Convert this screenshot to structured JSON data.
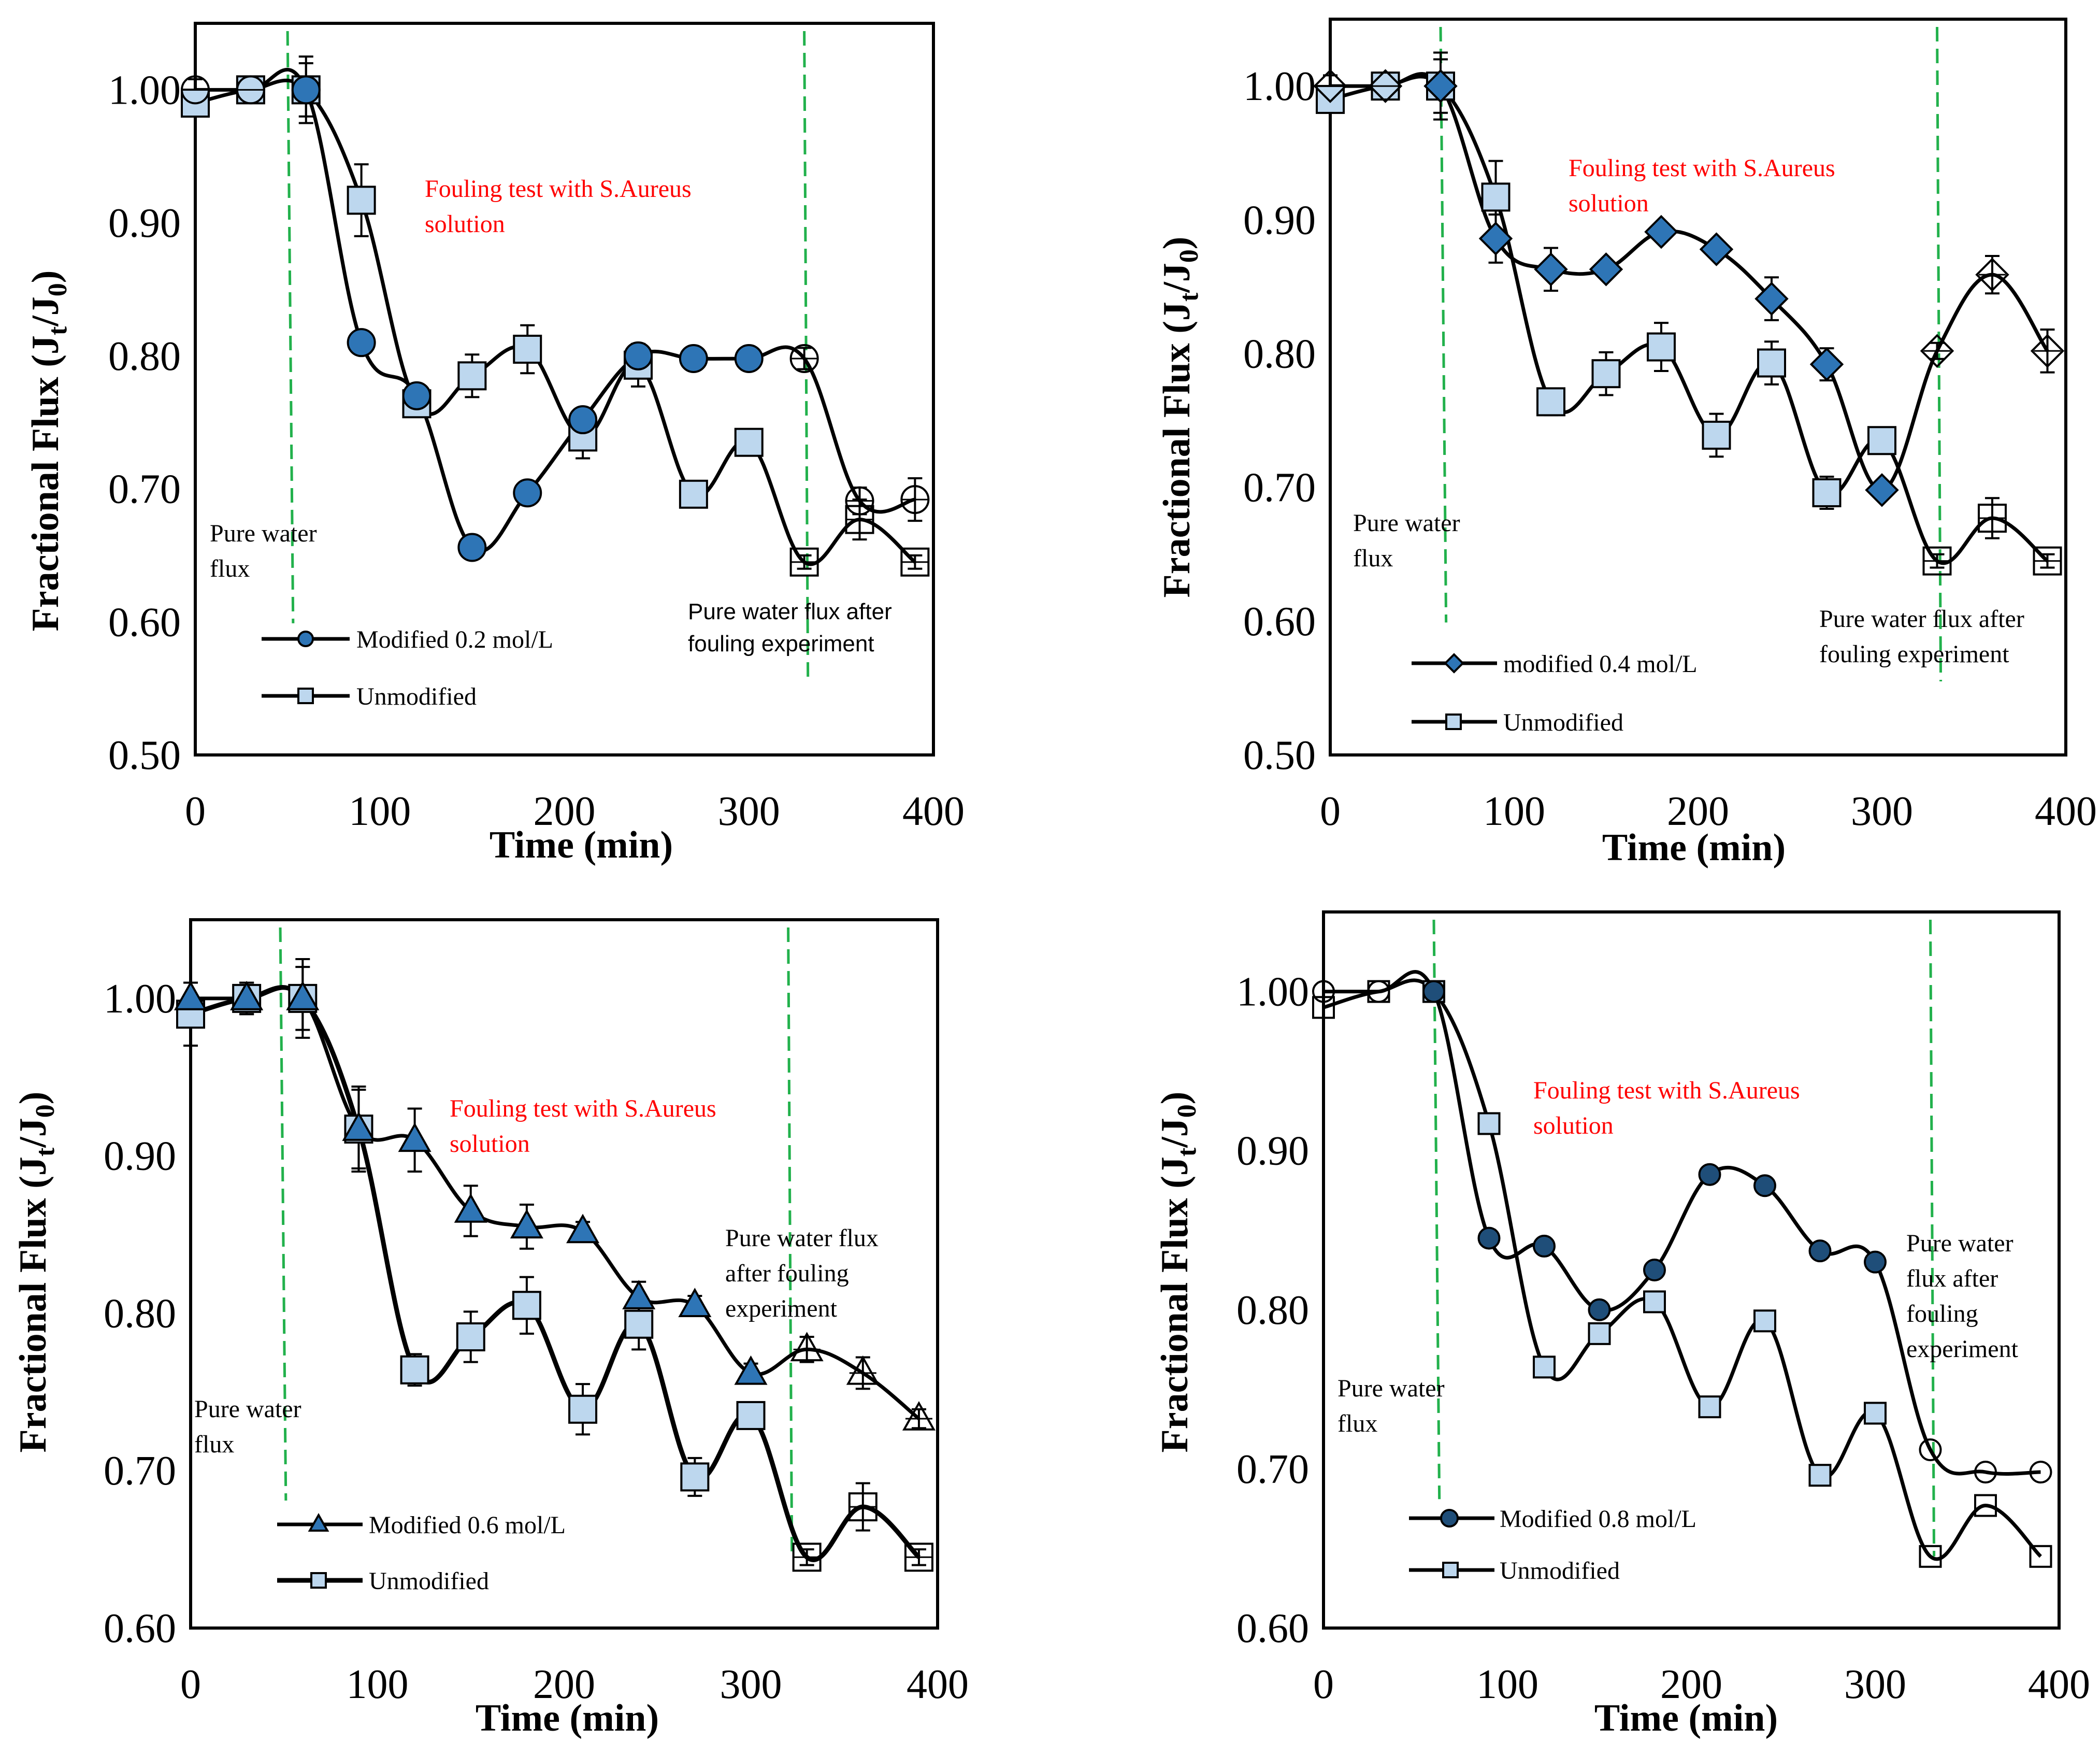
{
  "charts": [
    {
      "ylabel": "Fractional  Flux (J",
      "ylabel_sub": "t",
      "ylabel_mid": "/J",
      "ylabel_sub2": "0",
      "ylabel_end": ")",
      "xlabel": "Time (min)",
      "fouling_label": [
        "Fouling test with S.Aureus",
        "solution"
      ],
      "pure_label": [
        "Pure water",
        "flux"
      ],
      "after_label": [
        "Pure water flux after",
        "fouling experiment"
      ],
      "legend": [
        "Modified 0.2 mol/L",
        "Unmodified"
      ]
    },
    {
      "ylabel": "Fractional Flux (J",
      "ylabel_sub": "t",
      "ylabel_mid": "/J",
      "ylabel_sub2": "0",
      "ylabel_end": ")",
      "xlabel": "Time (min)",
      "fouling_label": [
        "Fouling test with S.Aureus",
        "solution"
      ],
      "pure_label": [
        "Pure water",
        "flux"
      ],
      "after_label": [
        "Pure water flux after",
        "fouling experiment"
      ],
      "legend": [
        "modified 0.4 mol/L",
        "Unmodified"
      ]
    },
    {
      "ylabel": "Fractional Flux (J",
      "ylabel_sub": "t",
      "ylabel_mid": "/J",
      "ylabel_sub2": "0",
      "ylabel_end": ")",
      "xlabel": "Time (min)",
      "fouling_label": [
        "Fouling test with S.Aureus",
        "solution"
      ],
      "pure_label": [
        "Pure water",
        "flux"
      ],
      "after_label": [
        "Pure water flux",
        "after fouling",
        "experiment"
      ],
      "legend": [
        "Modified 0.6 mol/L",
        "Unmodified"
      ]
    },
    {
      "ylabel": "Fractional Flux (J",
      "ylabel_sub": "t",
      "ylabel_mid": "/J",
      "ylabel_sub2": "0",
      "ylabel_end": ")",
      "xlabel": "Time (min)",
      "fouling_label": [
        "Fouling test with S.Aureus",
        "solution"
      ],
      "pure_label": [
        "Pure water",
        "flux"
      ],
      "after_label": [
        "Pure water",
        "flux after",
        "fouling",
        "experiment"
      ],
      "legend": [
        "Modified 0.8 mol/L",
        "Unmodified"
      ]
    }
  ],
  "chart_data": [
    {
      "type": "line",
      "xlabel": "Time (min)",
      "ylabel": "Fractional  Flux (Jt/J0)",
      "xlim": [
        0,
        400
      ],
      "ylim": [
        0.5,
        1.05
      ],
      "xticks": [
        0,
        100,
        200,
        300,
        400
      ],
      "yticks": [
        0.5,
        0.6,
        0.7,
        0.8,
        0.9,
        1.0
      ],
      "ytick_labels": [
        "0.50",
        "0.60",
        "0.70",
        "0.80",
        "0.90",
        "1.00"
      ],
      "vlines": [
        50,
        330
      ],
      "series": [
        {
          "name": "Modified 0.2 mol/L",
          "marker": "circle",
          "color": "#2e75b6",
          "x": [
            0,
            30,
            60,
            90,
            120,
            150,
            180,
            210,
            240,
            270,
            300,
            330,
            360,
            390
          ],
          "y": [
            1.0,
            1.0,
            1.0,
            0.81,
            0.77,
            0.656,
            0.697,
            0.752,
            0.8,
            0.798,
            0.798,
            0.798,
            0.691,
            0.692
          ],
          "err": [
            0.008,
            0.008,
            0.02,
            0.006,
            0.006,
            0.006,
            0.006,
            0.008,
            0.006,
            0.004,
            0.004,
            0.008,
            0.01,
            0.016
          ],
          "hollow_from": 330
        },
        {
          "name": "Unmodified",
          "marker": "square",
          "color": "#bdd7ee",
          "x": [
            0,
            30,
            60,
            90,
            120,
            150,
            180,
            210,
            240,
            270,
            300,
            330,
            360,
            390
          ],
          "y": [
            0.99,
            1.0,
            1.0,
            0.917,
            0.764,
            0.785,
            0.805,
            0.739,
            0.793,
            0.696,
            0.735,
            0.645,
            0.677,
            0.645
          ],
          "err": [
            0.005,
            0.01,
            0.025,
            0.027,
            0.01,
            0.016,
            0.018,
            0.016,
            0.016,
            0.005,
            0.005,
            0.005,
            0.015,
            0.005
          ],
          "hollow_from": 330
        }
      ]
    },
    {
      "type": "line",
      "xlabel": "Time (min)",
      "ylabel": "Fractional Flux (Jt/J0)",
      "xlim": [
        0,
        400
      ],
      "ylim": [
        0.5,
        1.05
      ],
      "xticks": [
        0,
        100,
        200,
        300,
        400
      ],
      "yticks": [
        0.5,
        0.6,
        0.7,
        0.8,
        0.9,
        1.0
      ],
      "ytick_labels": [
        "0.50",
        "0.60",
        "0.70",
        "0.80",
        "0.90",
        "1.00"
      ],
      "vlines": [
        60,
        330
      ],
      "series": [
        {
          "name": "modified 0.4 mol/L",
          "marker": "diamond",
          "color": "#2e75b6",
          "x": [
            0,
            30,
            60,
            90,
            120,
            150,
            180,
            210,
            240,
            270,
            300,
            330,
            360,
            390
          ],
          "y": [
            1.0,
            1.0,
            1.0,
            0.886,
            0.863,
            0.863,
            0.891,
            0.878,
            0.841,
            0.792,
            0.698,
            0.802,
            0.859,
            0.802
          ],
          "err": [
            0.008,
            0.008,
            0.02,
            0.018,
            0.016,
            0.006,
            0.006,
            0.006,
            0.016,
            0.012,
            0.006,
            0.006,
            0.014,
            0.016
          ],
          "hollow_from": 330
        },
        {
          "name": "Unmodified",
          "marker": "square",
          "color": "#bdd7ee",
          "x": [
            0,
            30,
            60,
            90,
            120,
            150,
            180,
            210,
            240,
            270,
            300,
            330,
            360,
            390
          ],
          "y": [
            0.99,
            1.0,
            1.0,
            0.917,
            0.764,
            0.785,
            0.805,
            0.739,
            0.793,
            0.696,
            0.735,
            0.645,
            0.677,
            0.645
          ],
          "err": [
            0.005,
            0.01,
            0.025,
            0.027,
            0.01,
            0.016,
            0.018,
            0.016,
            0.016,
            0.012,
            0.005,
            0.005,
            0.015,
            0.005
          ],
          "hollow_from": 330
        }
      ]
    },
    {
      "type": "line",
      "xlabel": "Time (min)",
      "ylabel": "Fractional Flux (Jt/J0)",
      "xlim": [
        0,
        400
      ],
      "ylim": [
        0.6,
        1.05
      ],
      "xticks": [
        0,
        100,
        200,
        300,
        400
      ],
      "yticks": [
        0.6,
        0.7,
        0.8,
        0.9,
        1.0
      ],
      "ytick_labels": [
        "0.60",
        "0.70",
        "0.80",
        "0.90",
        "1.00"
      ],
      "vlines": [
        48,
        320
      ],
      "series": [
        {
          "name": "Modified 0.6 mol/L",
          "marker": "triangle",
          "color": "#2e75b6",
          "x": [
            0,
            30,
            60,
            90,
            120,
            150,
            180,
            210,
            240,
            270,
            300,
            330,
            360,
            390
          ],
          "y": [
            1.0,
            1.0,
            1.0,
            0.917,
            0.91,
            0.865,
            0.855,
            0.852,
            0.81,
            0.805,
            0.762,
            0.777,
            0.762,
            0.733
          ],
          "err": [
            0.01,
            0.01,
            0.02,
            0.025,
            0.02,
            0.016,
            0.014,
            0.006,
            0.01,
            0.006,
            0.006,
            0.008,
            0.01,
            0.006
          ],
          "hollow_from": 330
        },
        {
          "name": "Unmodified",
          "marker": "square",
          "color": "#bdd7ee",
          "x": [
            0,
            30,
            60,
            90,
            120,
            150,
            180,
            210,
            240,
            270,
            300,
            330,
            360,
            390
          ],
          "y": [
            0.99,
            1.0,
            1.0,
            0.917,
            0.764,
            0.785,
            0.805,
            0.739,
            0.793,
            0.696,
            0.735,
            0.645,
            0.677,
            0.645
          ],
          "err": [
            0.02,
            0.01,
            0.025,
            0.027,
            0.01,
            0.016,
            0.018,
            0.016,
            0.016,
            0.012,
            0.005,
            0.005,
            0.015,
            0.005
          ],
          "hollow_from": 330
        }
      ]
    },
    {
      "type": "line",
      "xlabel": "Time (min)",
      "ylabel": "Fractional Flux (Jt/J0)",
      "xlim": [
        0,
        400
      ],
      "ylim": [
        0.6,
        1.05
      ],
      "xticks": [
        0,
        100,
        200,
        300,
        400
      ],
      "yticks": [
        0.6,
        0.7,
        0.8,
        0.9,
        1.0
      ],
      "ytick_labels": [
        "0.60",
        "0.70",
        "0.80",
        "0.90",
        "1.00"
      ],
      "vlines": [
        60,
        330
      ],
      "series": [
        {
          "name": "Modified 0.8 mol/L",
          "marker": "circle",
          "color": "#1f4e79",
          "x": [
            0,
            30,
            60,
            90,
            120,
            150,
            180,
            210,
            240,
            270,
            300,
            330,
            360,
            390
          ],
          "y": [
            1.0,
            1.0,
            1.0,
            0.845,
            0.84,
            0.8,
            0.825,
            0.885,
            0.878,
            0.837,
            0.83,
            0.712,
            0.698,
            0.698
          ],
          "err": [
            0,
            0,
            0,
            0,
            0,
            0,
            0,
            0,
            0,
            0,
            0,
            0,
            0,
            0
          ],
          "hollow_from": 330,
          "hollow_x": [
            0,
            30
          ]
        },
        {
          "name": "Unmodified",
          "marker": "square",
          "color": "#bdd7ee",
          "x": [
            0,
            30,
            60,
            90,
            120,
            150,
            180,
            210,
            240,
            270,
            300,
            330,
            360,
            390
          ],
          "y": [
            0.99,
            1.0,
            1.0,
            0.917,
            0.764,
            0.785,
            0.805,
            0.739,
            0.793,
            0.696,
            0.735,
            0.645,
            0.677,
            0.645
          ],
          "err": [
            0,
            0,
            0,
            0,
            0,
            0,
            0,
            0,
            0,
            0,
            0,
            0,
            0,
            0
          ],
          "hollow_from": 330,
          "hollow_x": [
            0,
            30
          ]
        }
      ]
    }
  ]
}
